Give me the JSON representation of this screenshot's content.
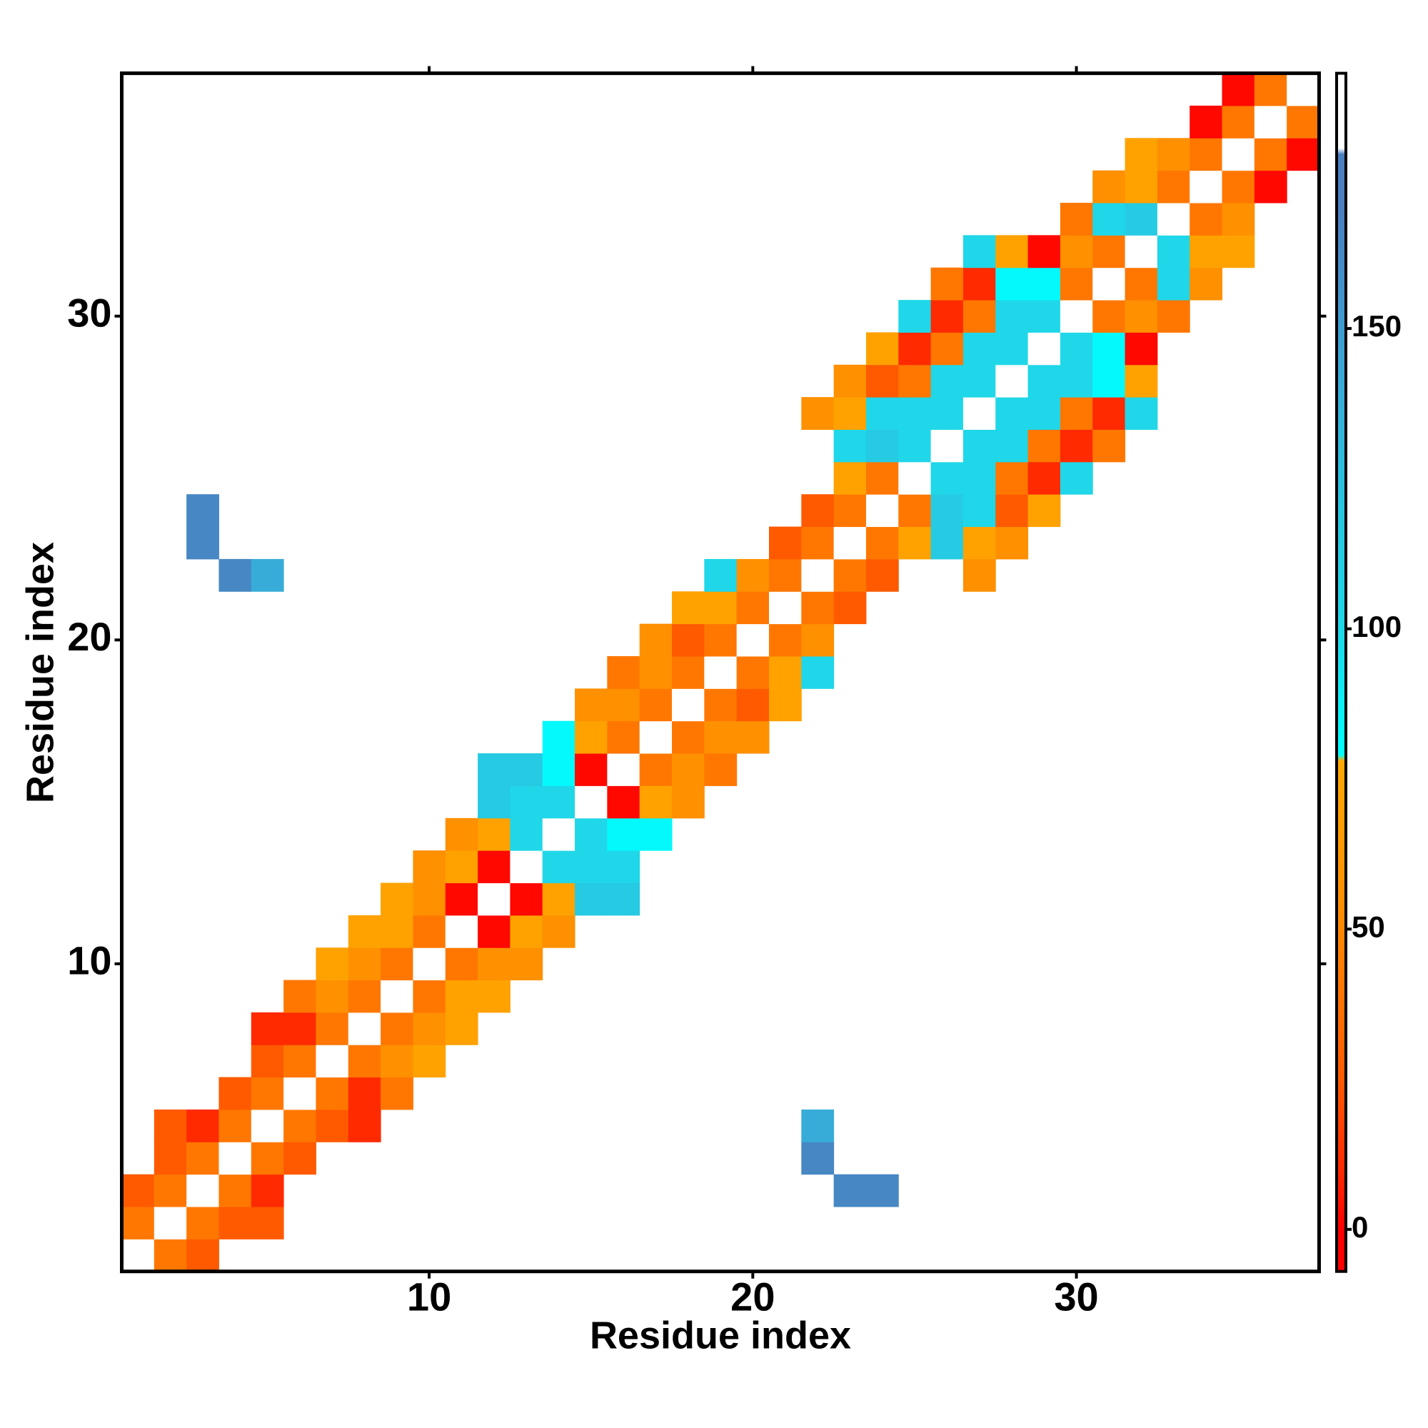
{
  "chart_data": {
    "type": "heatmap",
    "xlabel": "Residue index",
    "ylabel": "Residue index",
    "xlim": [
      0.5,
      37.5
    ],
    "ylim": [
      0.5,
      37.5
    ],
    "xticks": [
      10,
      20,
      30
    ],
    "yticks": [
      10,
      20,
      30
    ],
    "colorbar": {
      "lim": [
        -7,
        192.5
      ],
      "ticks": [
        0,
        50,
        100,
        150
      ],
      "stops": [
        [
          -7,
          "#ff0000"
        ],
        [
          0,
          "#ff0000"
        ],
        [
          10,
          "#ff2a00"
        ],
        [
          25,
          "#ff5a00"
        ],
        [
          40,
          "#ff7700"
        ],
        [
          55,
          "#ff9000"
        ],
        [
          78,
          "#ffa800"
        ],
        [
          79,
          "#00ffff"
        ],
        [
          100,
          "#1fd7e8"
        ],
        [
          120,
          "#28c6e0"
        ],
        [
          140,
          "#38acd8"
        ],
        [
          170,
          "#4a7fc0"
        ],
        [
          179,
          "#4a7fc0"
        ],
        [
          180,
          "#ffffff"
        ],
        [
          192.5,
          "#ffffff"
        ]
      ]
    },
    "cells": [
      [
        1,
        1,
        185
      ],
      [
        2,
        1,
        40
      ],
      [
        3,
        1,
        25
      ],
      [
        1,
        2,
        40
      ],
      [
        2,
        2,
        185
      ],
      [
        3,
        2,
        40
      ],
      [
        4,
        2,
        25
      ],
      [
        5,
        2,
        25
      ],
      [
        1,
        3,
        25
      ],
      [
        2,
        3,
        40
      ],
      [
        3,
        3,
        185
      ],
      [
        4,
        3,
        40
      ],
      [
        5,
        3,
        10
      ],
      [
        23,
        3,
        165
      ],
      [
        24,
        3,
        165
      ],
      [
        2,
        4,
        25
      ],
      [
        3,
        4,
        40
      ],
      [
        4,
        4,
        185
      ],
      [
        5,
        4,
        40
      ],
      [
        6,
        4,
        25
      ],
      [
        22,
        4,
        165
      ],
      [
        2,
        5,
        25
      ],
      [
        3,
        5,
        10
      ],
      [
        4,
        5,
        40
      ],
      [
        5,
        5,
        185
      ],
      [
        6,
        5,
        40
      ],
      [
        7,
        5,
        25
      ],
      [
        8,
        5,
        10
      ],
      [
        22,
        5,
        140
      ],
      [
        4,
        6,
        25
      ],
      [
        5,
        6,
        40
      ],
      [
        6,
        6,
        185
      ],
      [
        7,
        6,
        40
      ],
      [
        8,
        6,
        10
      ],
      [
        9,
        6,
        40
      ],
      [
        5,
        7,
        25
      ],
      [
        6,
        7,
        40
      ],
      [
        7,
        7,
        185
      ],
      [
        8,
        7,
        40
      ],
      [
        9,
        7,
        55
      ],
      [
        10,
        7,
        72
      ],
      [
        5,
        8,
        10
      ],
      [
        6,
        8,
        10
      ],
      [
        7,
        8,
        40
      ],
      [
        8,
        8,
        185
      ],
      [
        9,
        8,
        40
      ],
      [
        10,
        8,
        55
      ],
      [
        11,
        8,
        72
      ],
      [
        6,
        9,
        40
      ],
      [
        7,
        9,
        55
      ],
      [
        8,
        9,
        40
      ],
      [
        9,
        9,
        185
      ],
      [
        10,
        9,
        40
      ],
      [
        11,
        9,
        72
      ],
      [
        12,
        9,
        72
      ],
      [
        7,
        10,
        72
      ],
      [
        8,
        10,
        55
      ],
      [
        9,
        10,
        40
      ],
      [
        10,
        10,
        185
      ],
      [
        11,
        10,
        40
      ],
      [
        12,
        10,
        55
      ],
      [
        13,
        10,
        55
      ],
      [
        8,
        11,
        72
      ],
      [
        9,
        11,
        72
      ],
      [
        10,
        11,
        40
      ],
      [
        11,
        11,
        185
      ],
      [
        12,
        11,
        2
      ],
      [
        13,
        11,
        72
      ],
      [
        14,
        11,
        55
      ],
      [
        9,
        12,
        72
      ],
      [
        10,
        12,
        55
      ],
      [
        11,
        12,
        2
      ],
      [
        12,
        12,
        185
      ],
      [
        13,
        12,
        2
      ],
      [
        14,
        12,
        72
      ],
      [
        15,
        12,
        115
      ],
      [
        16,
        12,
        115
      ],
      [
        10,
        13,
        55
      ],
      [
        11,
        13,
        72
      ],
      [
        12,
        13,
        2
      ],
      [
        13,
        13,
        185
      ],
      [
        14,
        13,
        100
      ],
      [
        15,
        13,
        100
      ],
      [
        16,
        13,
        100
      ],
      [
        11,
        14,
        55
      ],
      [
        12,
        14,
        72
      ],
      [
        13,
        14,
        100
      ],
      [
        14,
        14,
        185
      ],
      [
        15,
        14,
        100
      ],
      [
        16,
        14,
        82
      ],
      [
        17,
        14,
        82
      ],
      [
        12,
        15,
        115
      ],
      [
        13,
        15,
        100
      ],
      [
        14,
        15,
        100
      ],
      [
        15,
        15,
        185
      ],
      [
        16,
        15,
        2
      ],
      [
        17,
        15,
        72
      ],
      [
        18,
        15,
        55
      ],
      [
        12,
        16,
        115
      ],
      [
        13,
        16,
        115
      ],
      [
        14,
        16,
        82
      ],
      [
        15,
        16,
        2
      ],
      [
        16,
        16,
        185
      ],
      [
        17,
        16,
        40
      ],
      [
        18,
        16,
        55
      ],
      [
        19,
        16,
        40
      ],
      [
        14,
        17,
        82
      ],
      [
        15,
        17,
        72
      ],
      [
        16,
        17,
        40
      ],
      [
        17,
        17,
        185
      ],
      [
        18,
        17,
        40
      ],
      [
        19,
        17,
        55
      ],
      [
        20,
        17,
        55
      ],
      [
        15,
        18,
        55
      ],
      [
        16,
        18,
        55
      ],
      [
        17,
        18,
        40
      ],
      [
        18,
        18,
        185
      ],
      [
        19,
        18,
        40
      ],
      [
        20,
        18,
        25
      ],
      [
        21,
        18,
        72
      ],
      [
        16,
        19,
        40
      ],
      [
        17,
        19,
        55
      ],
      [
        18,
        19,
        40
      ],
      [
        19,
        19,
        185
      ],
      [
        20,
        19,
        40
      ],
      [
        21,
        19,
        72
      ],
      [
        22,
        19,
        100
      ],
      [
        17,
        20,
        55
      ],
      [
        18,
        20,
        25
      ],
      [
        19,
        20,
        40
      ],
      [
        20,
        20,
        185
      ],
      [
        21,
        20,
        40
      ],
      [
        22,
        20,
        55
      ],
      [
        18,
        21,
        72
      ],
      [
        19,
        21,
        72
      ],
      [
        20,
        21,
        40
      ],
      [
        21,
        21,
        185
      ],
      [
        22,
        21,
        40
      ],
      [
        23,
        21,
        25
      ],
      [
        4,
        22,
        165
      ],
      [
        5,
        22,
        140
      ],
      [
        19,
        22,
        100
      ],
      [
        20,
        22,
        55
      ],
      [
        21,
        22,
        40
      ],
      [
        22,
        22,
        185
      ],
      [
        23,
        22,
        40
      ],
      [
        24,
        22,
        25
      ],
      [
        27,
        22,
        55
      ],
      [
        3,
        23,
        165
      ],
      [
        21,
        23,
        25
      ],
      [
        22,
        23,
        40
      ],
      [
        23,
        23,
        185
      ],
      [
        24,
        23,
        40
      ],
      [
        25,
        23,
        72
      ],
      [
        26,
        23,
        115
      ],
      [
        27,
        23,
        72
      ],
      [
        28,
        23,
        55
      ],
      [
        3,
        24,
        165
      ],
      [
        22,
        24,
        25
      ],
      [
        23,
        24,
        40
      ],
      [
        24,
        24,
        185
      ],
      [
        25,
        24,
        40
      ],
      [
        26,
        24,
        115
      ],
      [
        27,
        24,
        100
      ],
      [
        28,
        24,
        25
      ],
      [
        29,
        24,
        72
      ],
      [
        23,
        25,
        72
      ],
      [
        24,
        25,
        40
      ],
      [
        25,
        25,
        185
      ],
      [
        26,
        25,
        100
      ],
      [
        27,
        25,
        100
      ],
      [
        28,
        25,
        40
      ],
      [
        29,
        25,
        10
      ],
      [
        30,
        25,
        100
      ],
      [
        23,
        26,
        100
      ],
      [
        24,
        26,
        115
      ],
      [
        25,
        26,
        100
      ],
      [
        26,
        26,
        185
      ],
      [
        27,
        26,
        100
      ],
      [
        28,
        26,
        100
      ],
      [
        29,
        26,
        40
      ],
      [
        30,
        26,
        10
      ],
      [
        31,
        26,
        40
      ],
      [
        22,
        27,
        55
      ],
      [
        23,
        27,
        72
      ],
      [
        24,
        27,
        100
      ],
      [
        25,
        27,
        100
      ],
      [
        26,
        27,
        100
      ],
      [
        27,
        27,
        185
      ],
      [
        28,
        27,
        100
      ],
      [
        29,
        27,
        100
      ],
      [
        30,
        27,
        40
      ],
      [
        31,
        27,
        10
      ],
      [
        32,
        27,
        100
      ],
      [
        23,
        28,
        55
      ],
      [
        24,
        28,
        25
      ],
      [
        25,
        28,
        40
      ],
      [
        26,
        28,
        100
      ],
      [
        27,
        28,
        100
      ],
      [
        28,
        28,
        185
      ],
      [
        29,
        28,
        100
      ],
      [
        30,
        28,
        100
      ],
      [
        31,
        28,
        82
      ],
      [
        32,
        28,
        72
      ],
      [
        24,
        29,
        72
      ],
      [
        25,
        29,
        10
      ],
      [
        26,
        29,
        40
      ],
      [
        27,
        29,
        100
      ],
      [
        28,
        29,
        100
      ],
      [
        29,
        29,
        185
      ],
      [
        30,
        29,
        100
      ],
      [
        31,
        29,
        82
      ],
      [
        32,
        29,
        2
      ],
      [
        25,
        30,
        100
      ],
      [
        26,
        30,
        10
      ],
      [
        27,
        30,
        40
      ],
      [
        28,
        30,
        100
      ],
      [
        29,
        30,
        100
      ],
      [
        30,
        30,
        185
      ],
      [
        31,
        30,
        40
      ],
      [
        32,
        30,
        55
      ],
      [
        33,
        30,
        40
      ],
      [
        26,
        31,
        40
      ],
      [
        27,
        31,
        10
      ],
      [
        28,
        31,
        82
      ],
      [
        29,
        31,
        82
      ],
      [
        30,
        31,
        40
      ],
      [
        31,
        31,
        185
      ],
      [
        32,
        31,
        40
      ],
      [
        33,
        31,
        100
      ],
      [
        34,
        31,
        55
      ],
      [
        27,
        32,
        100
      ],
      [
        28,
        32,
        72
      ],
      [
        29,
        32,
        2
      ],
      [
        30,
        32,
        55
      ],
      [
        31,
        32,
        40
      ],
      [
        32,
        32,
        185
      ],
      [
        33,
        32,
        100
      ],
      [
        34,
        32,
        72
      ],
      [
        35,
        32,
        72
      ],
      [
        30,
        33,
        40
      ],
      [
        31,
        33,
        100
      ],
      [
        32,
        33,
        115
      ],
      [
        33,
        33,
        185
      ],
      [
        34,
        33,
        40
      ],
      [
        35,
        33,
        55
      ],
      [
        31,
        34,
        55
      ],
      [
        32,
        34,
        72
      ],
      [
        33,
        34,
        40
      ],
      [
        34,
        34,
        185
      ],
      [
        35,
        34,
        40
      ],
      [
        36,
        34,
        2
      ],
      [
        32,
        35,
        72
      ],
      [
        33,
        35,
        55
      ],
      [
        34,
        35,
        40
      ],
      [
        35,
        35,
        185
      ],
      [
        36,
        35,
        40
      ],
      [
        37,
        35,
        2
      ],
      [
        34,
        36,
        2
      ],
      [
        35,
        36,
        40
      ],
      [
        36,
        36,
        185
      ],
      [
        37,
        36,
        40
      ],
      [
        35,
        37,
        2
      ],
      [
        36,
        37,
        40
      ],
      [
        37,
        37,
        185
      ]
    ]
  }
}
